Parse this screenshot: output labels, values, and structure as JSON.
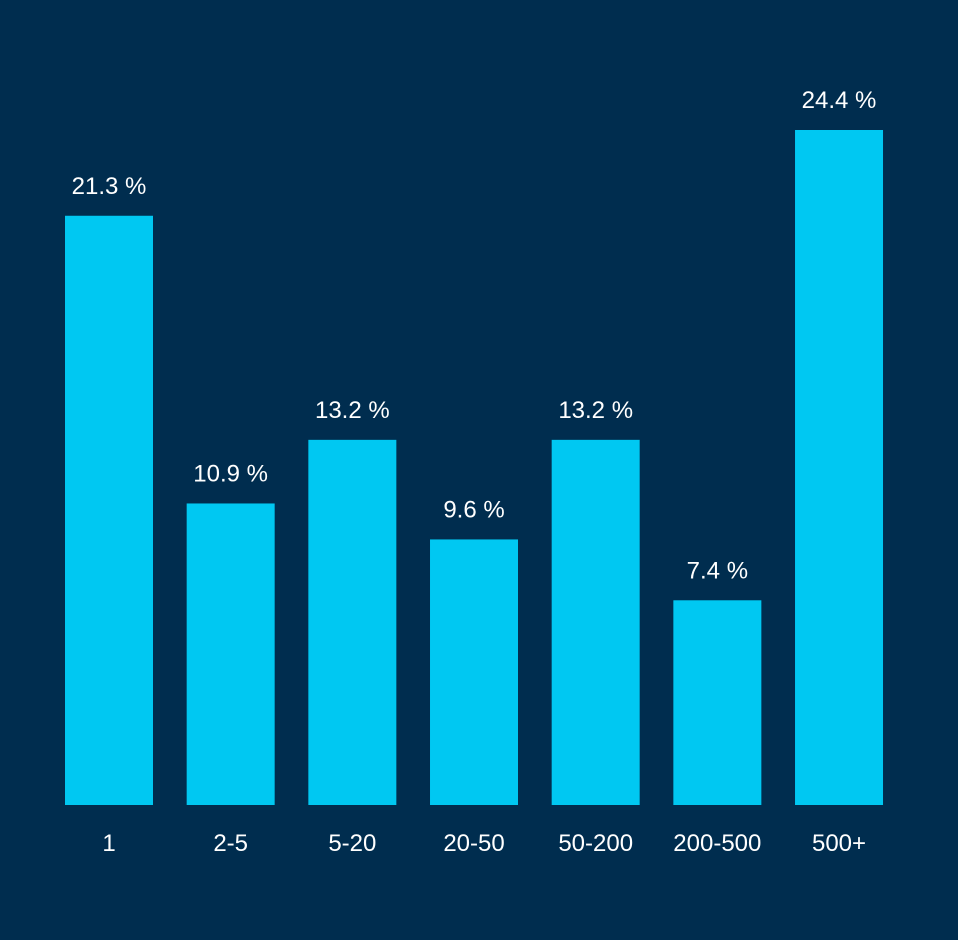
{
  "colors": {
    "background": "#002d4f",
    "bar": "#00c8f2",
    "text": "#ffffff"
  },
  "chart_data": {
    "type": "bar",
    "title": "",
    "xlabel": "",
    "ylabel": "",
    "categories": [
      "1",
      "2-5",
      "5-20",
      "20-50",
      "50-200",
      "200-500",
      "500+"
    ],
    "values": [
      21.3,
      10.9,
      13.2,
      9.6,
      13.2,
      7.4,
      24.4
    ],
    "value_labels": [
      "21.3 %",
      "10.9 %",
      "13.2 %",
      "9.6 %",
      "13.2 %",
      "7.4 %",
      "24.4 %"
    ],
    "ylim": [
      0,
      24.4
    ],
    "grid": false,
    "legend": "none",
    "y_axis_shown": false
  }
}
